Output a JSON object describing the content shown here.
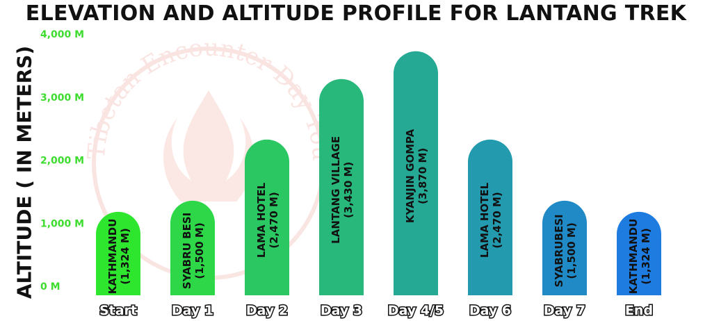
{
  "chart_data": {
    "type": "bar",
    "title": "ELEVATION AND ALTITUDE PROFILE FOR LANTANG TREK",
    "ylabel": "ALTITUDE ( IN METERS)",
    "xlabel": "",
    "ylim": [
      0,
      4000
    ],
    "yticks": [
      0,
      1000,
      2000,
      3000,
      4000
    ],
    "ytick_labels": [
      "0 M",
      "1,000 M",
      "2,000 M",
      "3,000 M",
      "4,000 M"
    ],
    "grid": true,
    "categories": [
      "Start",
      "Day 1",
      "Day 2",
      "Day 3",
      "Day 4/5",
      "Day 6",
      "Day 7",
      "End"
    ],
    "values": [
      1324,
      1500,
      2470,
      3430,
      3870,
      2470,
      1500,
      1324
    ],
    "bar_labels": [
      {
        "name": "KATHMANDU",
        "elev": "(1,324 M)"
      },
      {
        "name": "SYABRU BESI",
        "elev": "(1,500 M)"
      },
      {
        "name": "LAMA HOTEL",
        "elev": "(2,470 M)"
      },
      {
        "name": "LANTANG VILLAGE",
        "elev": "(3,430 M)"
      },
      {
        "name": "KYANJIN GOMPA",
        "elev": "(3,870 M)"
      },
      {
        "name": "LAMA HOTEL",
        "elev": "(2,470 M)"
      },
      {
        "name": "SYABRUBESI",
        "elev": "(1,500 M)"
      },
      {
        "name": "KATHMANDU",
        "elev": "(1,324 M)"
      }
    ],
    "colors": {
      "bar_gradient_start": "#2fe62f",
      "bar_gradient_end": "#1e7be0",
      "grid_start": "#3fd44a",
      "grid_end": "#2f78d6",
      "tick_label": "#3ddc2e"
    }
  },
  "watermark": {
    "text": "Tibetan Encounter Day Tours"
  }
}
